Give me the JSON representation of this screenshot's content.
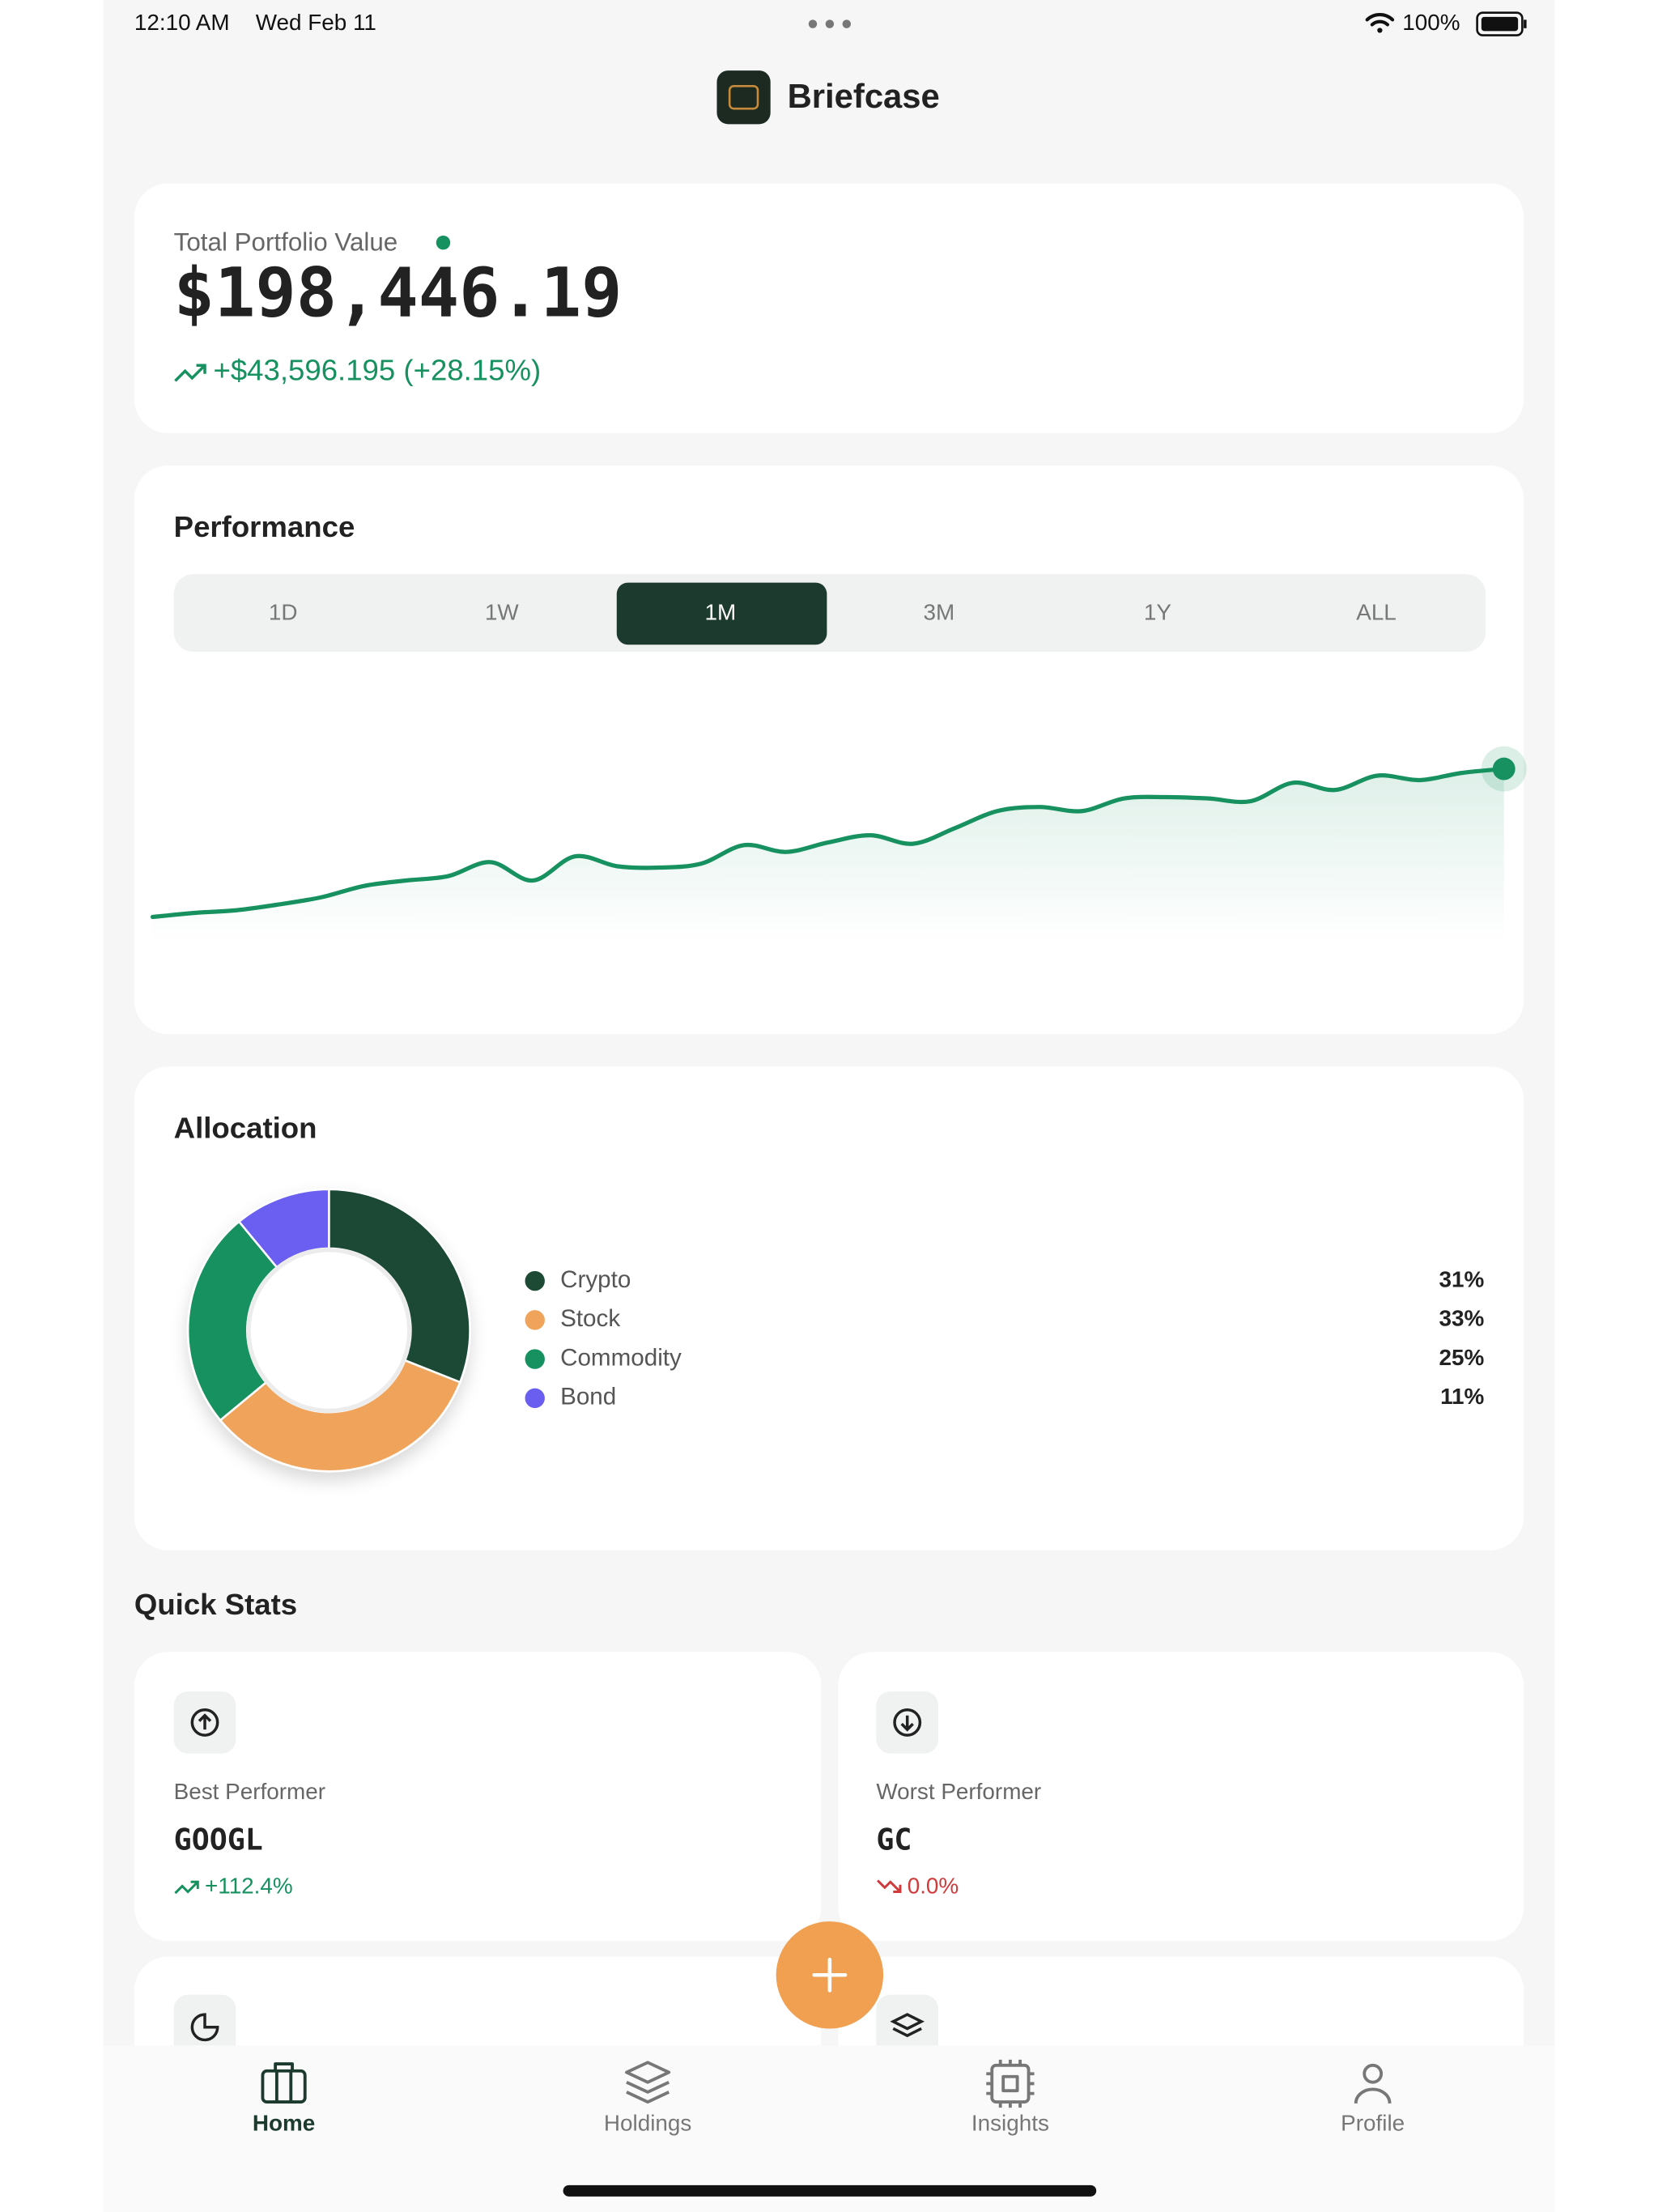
{
  "status_bar": {
    "time": "12:10 AM",
    "date": "Wed Feb 11",
    "battery": "100%"
  },
  "header": {
    "title": "Briefcase"
  },
  "portfolio": {
    "label": "Total Portfolio Value",
    "value": "$198,446.19",
    "change": "+$43,596.195 (+28.15%)"
  },
  "performance": {
    "title": "Performance",
    "tabs": [
      "1D",
      "1W",
      "1M",
      "3M",
      "1Y",
      "ALL"
    ],
    "selected": 2,
    "color": "#16915f",
    "values": [
      154.9,
      156.1,
      156.9,
      158.6,
      160.7,
      164.0,
      165.6,
      166.9,
      171.0,
      165.6,
      172.7,
      169.8,
      169.4,
      170.6,
      176.0,
      174.0,
      176.8,
      178.9,
      176.4,
      181.0,
      186.0,
      187.2,
      186.0,
      189.7,
      190.1,
      189.7,
      188.9,
      194.3,
      192.2,
      196.4,
      195.1,
      197.2,
      198.4
    ]
  },
  "allocation": {
    "title": "Allocation",
    "items": [
      {
        "name": "Crypto",
        "value": 31,
        "label": "31%",
        "color": "#1c4a35"
      },
      {
        "name": "Stock",
        "value": 33,
        "label": "33%",
        "color": "#f0a35a"
      },
      {
        "name": "Commodity",
        "value": 25,
        "label": "25%",
        "color": "#16915f"
      },
      {
        "name": "Bond",
        "value": 11,
        "label": "11%",
        "color": "#6a5ef0"
      }
    ]
  },
  "quick_stats": {
    "title": "Quick Stats",
    "cards": [
      {
        "label": "Best Performer",
        "symbol": "GOOGL",
        "change": "+112.4%"
      },
      {
        "label": "Worst Performer",
        "symbol": "GC",
        "change": "0.0%"
      }
    ]
  },
  "nav": {
    "items": [
      "Home",
      "Holdings",
      "Insights",
      "Profile"
    ],
    "active": 0
  }
}
